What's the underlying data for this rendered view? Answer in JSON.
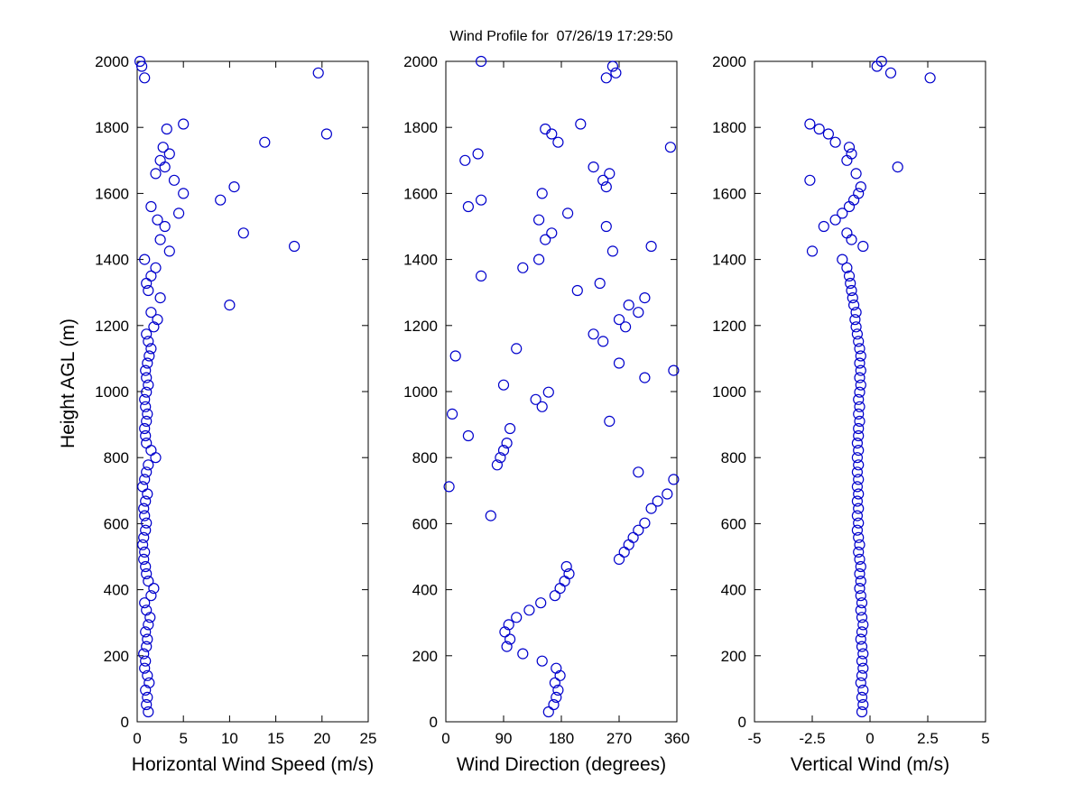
{
  "title": "Wind Profile for  07/26/19 17:29:50",
  "chart_data": {
    "type": "scatter",
    "marker": {
      "shape": "circle-open",
      "color": "#0000CC",
      "size": 5.5
    },
    "ylabel": "Height AGL (m)",
    "ylim": [
      0,
      2000
    ],
    "yticks": [
      0,
      200,
      400,
      600,
      800,
      1000,
      1200,
      1400,
      1600,
      1800,
      2000
    ],
    "grid": false,
    "legend": "none",
    "subplots": [
      {
        "name": "horizontal-wind-speed",
        "xlabel": "Horizontal Wind Speed (m/s)",
        "xlim": [
          0,
          25
        ],
        "xticks": [
          0,
          5,
          10,
          15,
          20,
          25
        ],
        "xtick_labels": [
          "0",
          "5",
          "10",
          "15",
          "20",
          "25"
        ],
        "col": 1
      },
      {
        "name": "wind-direction",
        "xlabel": "Wind Direction (degrees)",
        "xlim": [
          0,
          360
        ],
        "xticks": [
          0,
          90,
          180,
          270,
          360
        ],
        "xtick_labels": [
          "0",
          "90",
          "180",
          "270",
          "360"
        ],
        "col": 2
      },
      {
        "name": "vertical-wind",
        "xlabel": "Vertical Wind (m/s)",
        "xlim": [
          -5,
          5
        ],
        "xticks": [
          -5,
          -2.5,
          0,
          2.5,
          5
        ],
        "xtick_labels": [
          "-5",
          "-2.5",
          "0",
          "2.5",
          "5"
        ],
        "col": 3
      }
    ],
    "points_format": [
      "height_m",
      "speed_ms",
      "direction_deg",
      "vertical_ms"
    ],
    "points": [
      [
        30,
        1.2,
        160,
        -0.35
      ],
      [
        52,
        1.0,
        168,
        -0.3
      ],
      [
        74,
        1.1,
        172,
        -0.35
      ],
      [
        96,
        0.9,
        175,
        -0.3
      ],
      [
        118,
        1.3,
        170,
        -0.4
      ],
      [
        140,
        1.1,
        178,
        -0.35
      ],
      [
        162,
        0.8,
        172,
        -0.3
      ],
      [
        184,
        0.9,
        150,
        -0.35
      ],
      [
        206,
        0.7,
        120,
        -0.3
      ],
      [
        228,
        1.0,
        95,
        -0.35
      ],
      [
        250,
        1.1,
        100,
        -0.4
      ],
      [
        272,
        0.9,
        92,
        -0.35
      ],
      [
        294,
        1.2,
        98,
        -0.3
      ],
      [
        316,
        1.4,
        110,
        -0.35
      ],
      [
        338,
        1.0,
        130,
        -0.4
      ],
      [
        360,
        0.8,
        148,
        -0.35
      ],
      [
        382,
        1.5,
        170,
        -0.4
      ],
      [
        404,
        1.8,
        178,
        -0.45
      ],
      [
        426,
        1.2,
        185,
        -0.4
      ],
      [
        448,
        1.0,
        192,
        -0.45
      ],
      [
        470,
        0.9,
        188,
        -0.4
      ],
      [
        492,
        0.7,
        270,
        -0.45
      ],
      [
        514,
        0.8,
        278,
        -0.5
      ],
      [
        536,
        0.6,
        285,
        -0.45
      ],
      [
        558,
        0.7,
        292,
        -0.5
      ],
      [
        580,
        0.9,
        300,
        -0.55
      ],
      [
        602,
        1.0,
        310,
        -0.5
      ],
      [
        624,
        0.8,
        70,
        -0.55
      ],
      [
        646,
        0.7,
        320,
        -0.5
      ],
      [
        668,
        0.9,
        330,
        -0.55
      ],
      [
        690,
        1.1,
        345,
        -0.5
      ],
      [
        712,
        0.6,
        5,
        -0.55
      ],
      [
        734,
        0.8,
        355,
        -0.5
      ],
      [
        756,
        1.0,
        300,
        -0.55
      ],
      [
        778,
        1.2,
        80,
        -0.5
      ],
      [
        800,
        2.0,
        85,
        -0.55
      ],
      [
        822,
        1.5,
        90,
        -0.5
      ],
      [
        844,
        1.0,
        95,
        -0.55
      ],
      [
        866,
        0.9,
        35,
        -0.5
      ],
      [
        888,
        0.8,
        100,
        -0.5
      ],
      [
        910,
        1.0,
        255,
        -0.45
      ],
      [
        932,
        1.1,
        10,
        -0.5
      ],
      [
        954,
        0.9,
        150,
        -0.45
      ],
      [
        976,
        0.8,
        140,
        -0.5
      ],
      [
        998,
        1.0,
        160,
        -0.45
      ],
      [
        1020,
        1.2,
        90,
        -0.4
      ],
      [
        1042,
        1.0,
        310,
        -0.45
      ],
      [
        1064,
        0.9,
        355,
        -0.4
      ],
      [
        1086,
        1.1,
        270,
        -0.45
      ],
      [
        1108,
        1.3,
        15,
        -0.4
      ],
      [
        1130,
        1.5,
        110,
        -0.45
      ],
      [
        1152,
        1.2,
        245,
        -0.5
      ],
      [
        1174,
        1.0,
        230,
        -0.55
      ],
      [
        1196,
        1.8,
        280,
        -0.6
      ],
      [
        1218,
        2.2,
        270,
        -0.65
      ],
      [
        1240,
        1.5,
        300,
        -0.6
      ],
      [
        1262,
        10.0,
        285,
        -0.7
      ],
      [
        1284,
        2.5,
        310,
        -0.75
      ],
      [
        1306,
        1.2,
        205,
        -0.8
      ],
      [
        1328,
        1.0,
        240,
        -0.85
      ],
      [
        1350,
        1.5,
        55,
        -0.9
      ],
      [
        1375,
        2.0,
        120,
        -1.0
      ],
      [
        1400,
        0.8,
        145,
        -1.2
      ],
      [
        1425,
        3.5,
        260,
        -2.5
      ],
      [
        1440,
        17.0,
        320,
        -0.3
      ],
      [
        1460,
        2.5,
        155,
        -0.8
      ],
      [
        1480,
        11.5,
        165,
        -1.0
      ],
      [
        1500,
        3.0,
        250,
        -2.0
      ],
      [
        1520,
        2.2,
        145,
        -1.5
      ],
      [
        1540,
        4.5,
        190,
        -1.2
      ],
      [
        1560,
        1.5,
        35,
        -0.9
      ],
      [
        1580,
        9.0,
        55,
        -0.7
      ],
      [
        1600,
        5.0,
        150,
        -0.5
      ],
      [
        1620,
        10.5,
        250,
        -0.4
      ],
      [
        1640,
        4.0,
        245,
        -2.6
      ],
      [
        1660,
        2.0,
        255,
        -0.6
      ],
      [
        1680,
        3.0,
        230,
        1.2
      ],
      [
        1700,
        2.5,
        30,
        -1.0
      ],
      [
        1720,
        3.5,
        50,
        -0.8
      ],
      [
        1740,
        2.8,
        350,
        -0.9
      ],
      [
        1755,
        13.8,
        175,
        -1.5
      ],
      [
        1780,
        20.5,
        165,
        -1.8
      ],
      [
        1795,
        3.2,
        155,
        -2.2
      ],
      [
        1810,
        5.0,
        210,
        -2.6
      ],
      [
        1950,
        0.8,
        250,
        2.6
      ],
      [
        1965,
        19.6,
        265,
        0.9
      ],
      [
        1985,
        0.5,
        260,
        0.3
      ],
      [
        2000,
        0.3,
        55,
        0.5
      ]
    ]
  }
}
